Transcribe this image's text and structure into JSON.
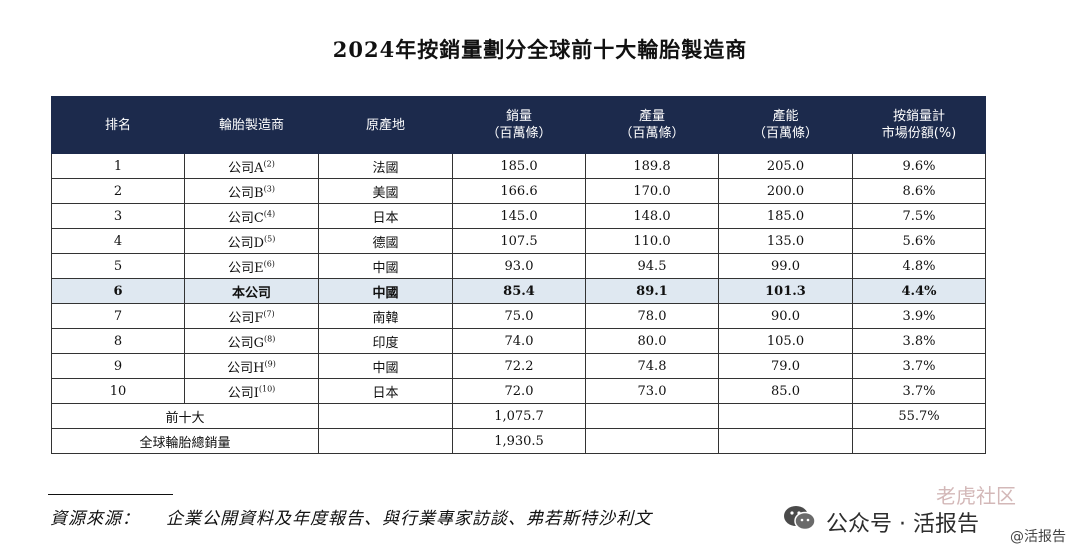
{
  "title": "2024年按銷量劃分全球前十大輪胎製造商",
  "headers": {
    "rank": "排名",
    "maker": "輪胎製造商",
    "origin": "原產地",
    "sales": [
      "銷量",
      "（百萬條）"
    ],
    "production": [
      "產量",
      "（百萬條）"
    ],
    "capacity": [
      "產能",
      "（百萬條）"
    ],
    "share": [
      "按銷量計",
      "市場份額(%)"
    ]
  },
  "rows": [
    {
      "rank": "1",
      "maker": "公司A",
      "note": "(2)",
      "origin": "法國",
      "sales": "185.0",
      "production": "189.8",
      "capacity": "205.0",
      "share": "9.6%"
    },
    {
      "rank": "2",
      "maker": "公司B",
      "note": "(3)",
      "origin": "美國",
      "sales": "166.6",
      "production": "170.0",
      "capacity": "200.0",
      "share": "8.6%"
    },
    {
      "rank": "3",
      "maker": "公司C",
      "note": "(4)",
      "origin": "日本",
      "sales": "145.0",
      "production": "148.0",
      "capacity": "185.0",
      "share": "7.5%"
    },
    {
      "rank": "4",
      "maker": "公司D",
      "note": "(5)",
      "origin": "德國",
      "sales": "107.5",
      "production": "110.0",
      "capacity": "135.0",
      "share": "5.6%"
    },
    {
      "rank": "5",
      "maker": "公司E",
      "note": "(6)",
      "origin": "中國",
      "sales": "93.0",
      "production": "94.5",
      "capacity": "99.0",
      "share": "4.8%"
    },
    {
      "rank": "6",
      "maker": "本公司",
      "note": "",
      "origin": "中國",
      "sales": "85.4",
      "production": "89.1",
      "capacity": "101.3",
      "share": "4.4%",
      "highlight": true
    },
    {
      "rank": "7",
      "maker": "公司F",
      "note": "(7)",
      "origin": "南韓",
      "sales": "75.0",
      "production": "78.0",
      "capacity": "90.0",
      "share": "3.9%"
    },
    {
      "rank": "8",
      "maker": "公司G",
      "note": "(8)",
      "origin": "印度",
      "sales": "74.0",
      "production": "80.0",
      "capacity": "105.0",
      "share": "3.8%"
    },
    {
      "rank": "9",
      "maker": "公司H",
      "note": "(9)",
      "origin": "中國",
      "sales": "72.2",
      "production": "74.8",
      "capacity": "79.0",
      "share": "3.7%"
    },
    {
      "rank": "10",
      "maker": "公司I",
      "note": "(10)",
      "origin": "日本",
      "sales": "72.0",
      "production": "73.0",
      "capacity": "85.0",
      "share": "3.7%"
    }
  ],
  "totals": {
    "top10_label": "前十大",
    "top10_sales": "1,075.7",
    "top10_share": "55.7%",
    "global_label": "全球輪胎總銷量",
    "global_sales": "1,930.5"
  },
  "source": {
    "label": "資源來源：",
    "text": "企業公開資料及年度報告、與行業專家訪談、弗若斯特沙利文"
  },
  "watermark": {
    "main": "公众号 · 活报告",
    "faint": "老虎社区",
    "small": "@活报告"
  },
  "colors": {
    "header_bg": "#1c2a4c",
    "highlight_bg": "#dfe8f1"
  }
}
